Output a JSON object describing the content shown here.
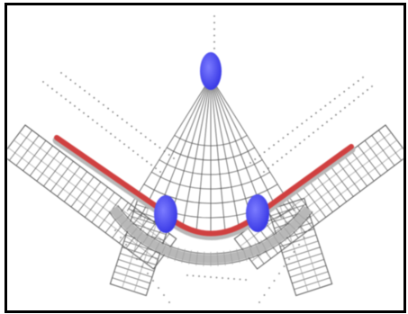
{
  "diagram": {
    "colors": {
      "frame": "#000000",
      "background": "#ffffff",
      "grid_line": "#555555",
      "grid_faint": "#9a9a9a",
      "dot_mark": "#777777",
      "material_strip": "#d04040",
      "strip_under": "#b8b8b8",
      "roller": "#3a3ae6",
      "roller_highlight": "#7c7cff",
      "lettering": "#888888"
    },
    "rollers": [
      {
        "name": "top-roller"
      },
      {
        "name": "left-roller"
      },
      {
        "name": "right-roller"
      }
    ]
  }
}
